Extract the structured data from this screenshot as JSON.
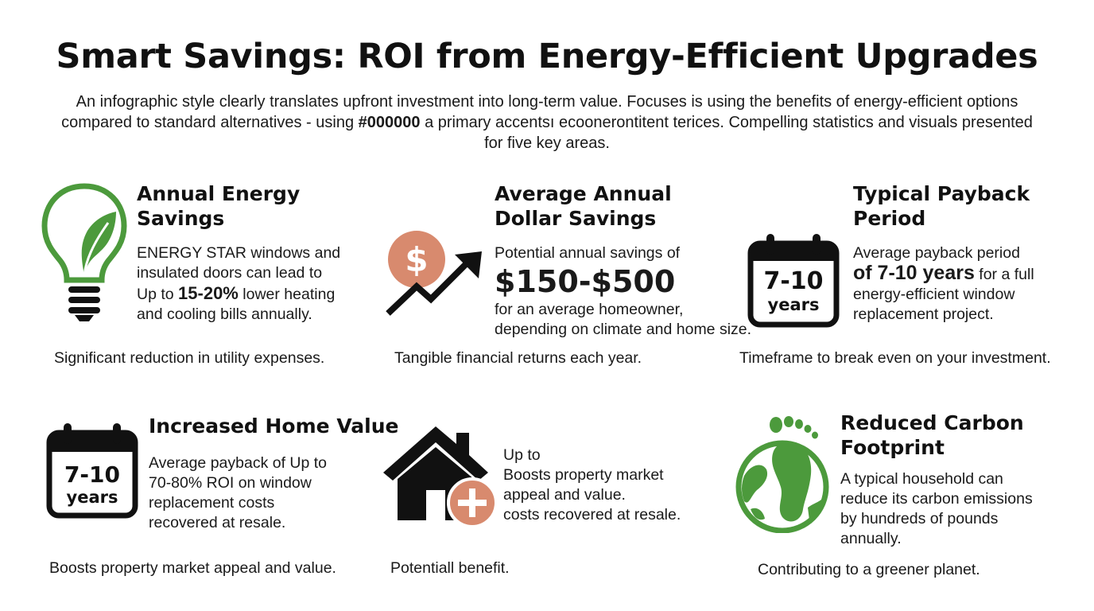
{
  "header": {
    "title": "Smart Savings: ROI from Energy-Efficient Upgrades",
    "subtitle_part1": "An infographic style clearly translates upfront investment into long-term value. Focuses is using the benefits of energy-efficient options compared to standard alternatives - using ",
    "subtitle_accent": "#000000",
    "subtitle_part2": " a primary accentsı ecoonerontitent terices. Compelling statistics and visuals presented for five key areas."
  },
  "colors": {
    "accent_green": "#4c9a3c",
    "accent_terracotta": "#d88a6e",
    "text": "#111111"
  },
  "cards": {
    "annual_energy": {
      "icon": "lightbulb-leaf-icon",
      "heading_l1": "Annual Energy",
      "heading_l2": "Savings",
      "line1": "ENERGY STAR windows and",
      "line2": "insulated doors can lead to",
      "line3_pre": "Up to ",
      "line3_big": "15-20%",
      "line3_post": " lower heating",
      "line4": "and cooling bills annually.",
      "caption": "Significant reduction in utility expenses."
    },
    "dollar_savings": {
      "icon": "dollar-growth-arrow-icon",
      "heading_l1": "Average Annual",
      "heading_l2": "Dollar Savings",
      "line1": "Potential annual savings of",
      "amount": "$150-$500",
      "line2": "for an average homeowner,",
      "line3": "depending on climate and home size.",
      "caption": "Tangible financial returns each year."
    },
    "payback": {
      "icon": "calendar-icon",
      "calendar_l1": "7-10",
      "calendar_l2": "years",
      "heading_l1": "Typical Payback",
      "heading_l2": "Period",
      "line1": "Average payback period",
      "line2_big": "of 7-10 years",
      "line2_post": " for a full",
      "line3": "energy-efficient window",
      "line4": "replacement project.",
      "caption": "Timeframe to break even on your investment."
    },
    "home_value": {
      "icon": "calendar-icon",
      "calendar_l1": "7-10",
      "calendar_l2": "years",
      "heading": "Increased Home Value",
      "line1": "Average payback of Up to",
      "line2": "70-80% ROI on window",
      "line3": "replacement costs",
      "line4": "recovered at resale.",
      "caption": "Boosts property market appeal and value."
    },
    "house": {
      "icon": "house-plus-icon",
      "line1": "Up to",
      "line2": "Boosts property market",
      "line3": "appeal and value.",
      "line4": "costs recovered at resale.",
      "caption": "Potentiall benefit."
    },
    "carbon": {
      "icon": "globe-footprint-icon",
      "heading_l1": "Reduced Carbon",
      "heading_l2": "Footprint",
      "line1": "A typical household can",
      "line2": "reduce its carbon emissions",
      "line3": "by hundreds of pounds",
      "line4": "annually.",
      "caption": "Contributing to a greener planet."
    }
  }
}
